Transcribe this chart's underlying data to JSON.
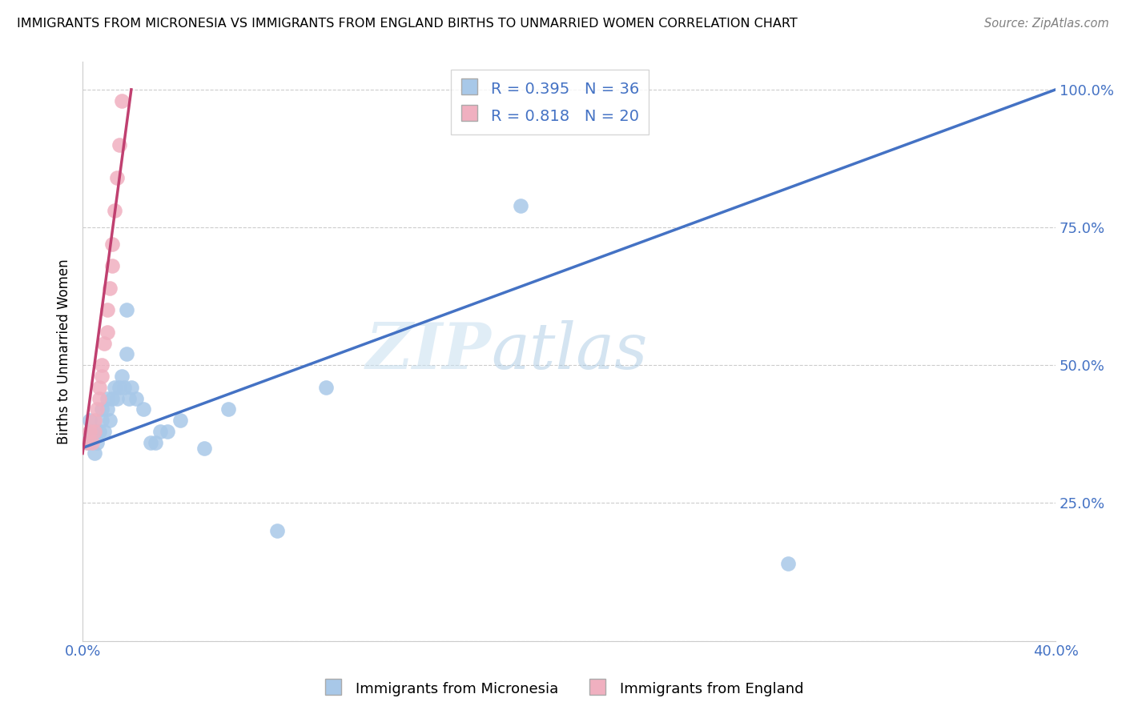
{
  "title": "IMMIGRANTS FROM MICRONESIA VS IMMIGRANTS FROM ENGLAND BIRTHS TO UNMARRIED WOMEN CORRELATION CHART",
  "source": "Source: ZipAtlas.com",
  "ylabel": "Births to Unmarried Women",
  "legend_label_blue": "Immigrants from Micronesia",
  "legend_label_pink": "Immigrants from England",
  "R_blue": 0.395,
  "N_blue": 36,
  "R_pink": 0.818,
  "N_pink": 20,
  "x_min": 0.0,
  "x_max": 0.4,
  "y_min": 0.0,
  "y_max": 1.05,
  "color_blue": "#a8c8e8",
  "color_pink": "#f0b0c0",
  "line_color_blue": "#4472c4",
  "line_color_pink": "#c04070",
  "watermark_zip": "ZIP",
  "watermark_atlas": "atlas",
  "blue_points": [
    [
      0.002,
      0.36
    ],
    [
      0.003,
      0.4
    ],
    [
      0.004,
      0.38
    ],
    [
      0.005,
      0.34
    ],
    [
      0.005,
      0.38
    ],
    [
      0.006,
      0.36
    ],
    [
      0.007,
      0.38
    ],
    [
      0.008,
      0.4
    ],
    [
      0.008,
      0.42
    ],
    [
      0.009,
      0.38
    ],
    [
      0.01,
      0.42
    ],
    [
      0.01,
      0.44
    ],
    [
      0.011,
      0.4
    ],
    [
      0.012,
      0.44
    ],
    [
      0.013,
      0.46
    ],
    [
      0.014,
      0.44
    ],
    [
      0.015,
      0.46
    ],
    [
      0.016,
      0.48
    ],
    [
      0.017,
      0.46
    ],
    [
      0.018,
      0.52
    ],
    [
      0.018,
      0.6
    ],
    [
      0.019,
      0.44
    ],
    [
      0.02,
      0.46
    ],
    [
      0.022,
      0.44
    ],
    [
      0.025,
      0.42
    ],
    [
      0.028,
      0.36
    ],
    [
      0.03,
      0.36
    ],
    [
      0.032,
      0.38
    ],
    [
      0.035,
      0.38
    ],
    [
      0.04,
      0.4
    ],
    [
      0.05,
      0.35
    ],
    [
      0.06,
      0.42
    ],
    [
      0.08,
      0.2
    ],
    [
      0.1,
      0.46
    ],
    [
      0.18,
      0.79
    ],
    [
      0.29,
      0.14
    ]
  ],
  "pink_points": [
    [
      0.002,
      0.36
    ],
    [
      0.003,
      0.38
    ],
    [
      0.004,
      0.36
    ],
    [
      0.005,
      0.38
    ],
    [
      0.005,
      0.4
    ],
    [
      0.006,
      0.42
    ],
    [
      0.007,
      0.44
    ],
    [
      0.007,
      0.46
    ],
    [
      0.008,
      0.48
    ],
    [
      0.008,
      0.5
    ],
    [
      0.009,
      0.54
    ],
    [
      0.01,
      0.56
    ],
    [
      0.01,
      0.6
    ],
    [
      0.011,
      0.64
    ],
    [
      0.012,
      0.68
    ],
    [
      0.012,
      0.72
    ],
    [
      0.013,
      0.78
    ],
    [
      0.014,
      0.84
    ],
    [
      0.015,
      0.9
    ],
    [
      0.016,
      0.98
    ]
  ]
}
